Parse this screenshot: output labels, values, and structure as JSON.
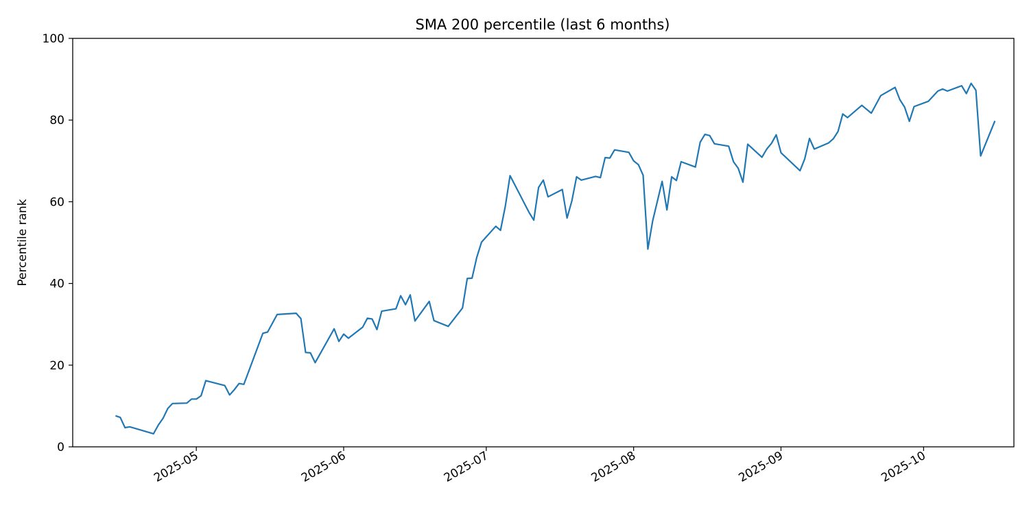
{
  "chart_data": {
    "type": "line",
    "title": "SMA 200 percentile (last 6 months)",
    "xlabel": "",
    "ylabel": "Percentile rank",
    "x_axis_type": "date",
    "ylim": [
      0,
      100
    ],
    "y_ticks": [
      0,
      20,
      40,
      60,
      80,
      100
    ],
    "x_ticks": [
      "2025-05-01",
      "2025-06-01",
      "2025-07-01",
      "2025-08-01",
      "2025-09-01",
      "2025-10-01"
    ],
    "x_tick_labels": [
      "2025-05",
      "2025-06",
      "2025-07",
      "2025-08",
      "2025-09",
      "2025-10"
    ],
    "grid": false,
    "line_color": "#1f77b4",
    "series": [
      {
        "points": [
          [
            "2025-04-14",
            7.6
          ],
          [
            "2025-04-15",
            7.2
          ],
          [
            "2025-04-16",
            4.7
          ],
          [
            "2025-04-17",
            4.9
          ],
          [
            "2025-04-22",
            3.2
          ],
          [
            "2025-04-23",
            5.3
          ],
          [
            "2025-04-24",
            7.0
          ],
          [
            "2025-04-25",
            9.4
          ],
          [
            "2025-04-26",
            10.6
          ],
          [
            "2025-04-29",
            10.7
          ],
          [
            "2025-04-30",
            11.7
          ],
          [
            "2025-05-01",
            11.7
          ],
          [
            "2025-05-02",
            12.5
          ],
          [
            "2025-05-03",
            16.2
          ],
          [
            "2025-05-07",
            15.0
          ],
          [
            "2025-05-08",
            12.7
          ],
          [
            "2025-05-09",
            14.0
          ],
          [
            "2025-05-10",
            15.5
          ],
          [
            "2025-05-11",
            15.3
          ],
          [
            "2025-05-15",
            27.8
          ],
          [
            "2025-05-16",
            28.1
          ],
          [
            "2025-05-18",
            32.4
          ],
          [
            "2025-05-22",
            32.7
          ],
          [
            "2025-05-23",
            31.4
          ],
          [
            "2025-05-24",
            23.1
          ],
          [
            "2025-05-25",
            23.0
          ],
          [
            "2025-05-26",
            20.6
          ],
          [
            "2025-05-30",
            28.9
          ],
          [
            "2025-05-31",
            25.8
          ],
          [
            "2025-06-01",
            27.6
          ],
          [
            "2025-06-02",
            26.6
          ],
          [
            "2025-06-05",
            29.3
          ],
          [
            "2025-06-06",
            31.5
          ],
          [
            "2025-06-07",
            31.3
          ],
          [
            "2025-06-08",
            28.7
          ],
          [
            "2025-06-09",
            33.2
          ],
          [
            "2025-06-12",
            33.8
          ],
          [
            "2025-06-13",
            37.0
          ],
          [
            "2025-06-14",
            34.8
          ],
          [
            "2025-06-15",
            37.2
          ],
          [
            "2025-06-16",
            30.8
          ],
          [
            "2025-06-19",
            35.6
          ],
          [
            "2025-06-20",
            30.9
          ],
          [
            "2025-06-23",
            29.5
          ],
          [
            "2025-06-26",
            34.0
          ],
          [
            "2025-06-27",
            41.2
          ],
          [
            "2025-06-28",
            41.3
          ],
          [
            "2025-06-29",
            46.4
          ],
          [
            "2025-06-30",
            50.1
          ],
          [
            "2025-07-03",
            54.0
          ],
          [
            "2025-07-04",
            53.0
          ],
          [
            "2025-07-05",
            58.9
          ],
          [
            "2025-07-06",
            66.4
          ],
          [
            "2025-07-10",
            57.4
          ],
          [
            "2025-07-11",
            55.5
          ],
          [
            "2025-07-12",
            63.5
          ],
          [
            "2025-07-13",
            65.3
          ],
          [
            "2025-07-14",
            61.2
          ],
          [
            "2025-07-17",
            63.0
          ],
          [
            "2025-07-18",
            56.0
          ],
          [
            "2025-07-19",
            60.2
          ],
          [
            "2025-07-20",
            66.1
          ],
          [
            "2025-07-21",
            65.3
          ],
          [
            "2025-07-24",
            66.2
          ],
          [
            "2025-07-25",
            65.9
          ],
          [
            "2025-07-26",
            70.8
          ],
          [
            "2025-07-27",
            70.7
          ],
          [
            "2025-07-28",
            72.7
          ],
          [
            "2025-07-31",
            72.1
          ],
          [
            "2025-08-01",
            70.0
          ],
          [
            "2025-08-02",
            69.1
          ],
          [
            "2025-08-03",
            66.5
          ],
          [
            "2025-08-04",
            48.4
          ],
          [
            "2025-08-05",
            55.3
          ],
          [
            "2025-08-07",
            65.0
          ],
          [
            "2025-08-08",
            58.0
          ],
          [
            "2025-08-09",
            66.1
          ],
          [
            "2025-08-10",
            65.2
          ],
          [
            "2025-08-11",
            69.8
          ],
          [
            "2025-08-14",
            68.5
          ],
          [
            "2025-08-15",
            74.6
          ],
          [
            "2025-08-16",
            76.5
          ],
          [
            "2025-08-17",
            76.2
          ],
          [
            "2025-08-18",
            74.2
          ],
          [
            "2025-08-21",
            73.6
          ],
          [
            "2025-08-22",
            69.8
          ],
          [
            "2025-08-23",
            68.2
          ],
          [
            "2025-08-24",
            64.8
          ],
          [
            "2025-08-25",
            74.1
          ],
          [
            "2025-08-28",
            70.9
          ],
          [
            "2025-08-29",
            72.9
          ],
          [
            "2025-08-30",
            74.3
          ],
          [
            "2025-08-31",
            76.4
          ],
          [
            "2025-09-01",
            72.0
          ],
          [
            "2025-09-05",
            67.6
          ],
          [
            "2025-09-06",
            70.5
          ],
          [
            "2025-09-07",
            75.5
          ],
          [
            "2025-09-08",
            72.9
          ],
          [
            "2025-09-11",
            74.4
          ],
          [
            "2025-09-12",
            75.4
          ],
          [
            "2025-09-13",
            77.2
          ],
          [
            "2025-09-14",
            81.5
          ],
          [
            "2025-09-15",
            80.6
          ],
          [
            "2025-09-18",
            83.6
          ],
          [
            "2025-09-20",
            81.7
          ],
          [
            "2025-09-22",
            86.0
          ],
          [
            "2025-09-25",
            88.0
          ],
          [
            "2025-09-26",
            85.0
          ],
          [
            "2025-09-27",
            83.2
          ],
          [
            "2025-09-28",
            79.7
          ],
          [
            "2025-09-29",
            83.3
          ],
          [
            "2025-10-02",
            84.6
          ],
          [
            "2025-10-04",
            87.1
          ],
          [
            "2025-10-05",
            87.6
          ],
          [
            "2025-10-06",
            87.1
          ],
          [
            "2025-10-09",
            88.4
          ],
          [
            "2025-10-10",
            86.5
          ],
          [
            "2025-10-11",
            89.0
          ],
          [
            "2025-10-12",
            87.3
          ],
          [
            "2025-10-13",
            71.2
          ],
          [
            "2025-10-16",
            79.8
          ]
        ]
      }
    ]
  }
}
